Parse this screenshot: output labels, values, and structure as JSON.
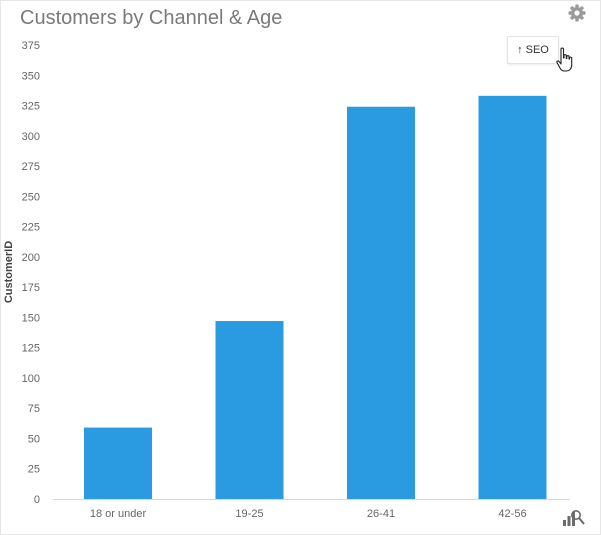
{
  "chart_data": {
    "type": "bar",
    "title": "Customers by Channel & Age",
    "categories": [
      "18 or under",
      "19-25",
      "26-41",
      "42-56"
    ],
    "values": [
      59,
      147,
      324,
      333
    ],
    "xlabel": "",
    "ylabel": "CustomerID",
    "ylim": [
      0,
      375
    ],
    "yticks": [
      0,
      25,
      50,
      75,
      100,
      125,
      150,
      175,
      200,
      225,
      250,
      275,
      300,
      325,
      350,
      375
    ],
    "ytick_labels": [
      "0",
      "25",
      "50",
      "75",
      "100",
      "125",
      "150",
      "175",
      "200",
      "225",
      "250",
      "275",
      "300",
      "325",
      "350",
      "375"
    ],
    "grid": false,
    "legend": "none",
    "bar_color": "#2b9be1"
  },
  "drill_button": {
    "label": "SEO",
    "icon": "arrow-up-icon"
  },
  "toolbar": {
    "settings_icon": "gear-icon",
    "chart_icon": "bar-chart-icon"
  },
  "colors": {
    "title": "#7a7a7a",
    "bar": "#2b9be1"
  }
}
